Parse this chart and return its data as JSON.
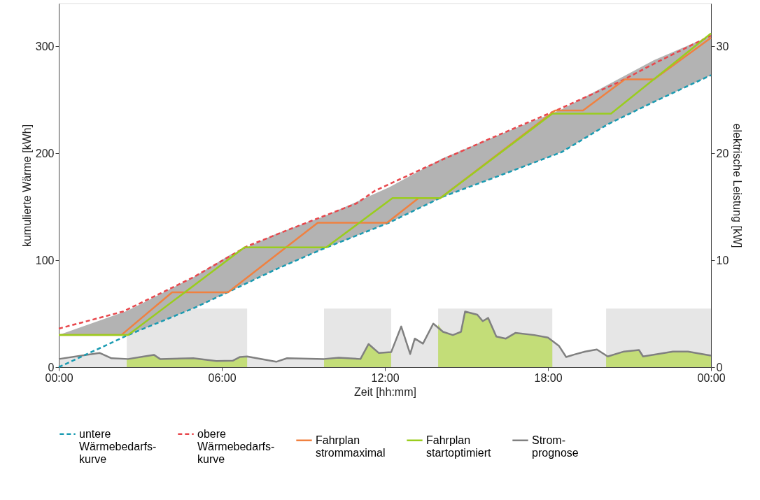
{
  "chart_data": {
    "type": "line",
    "xlabel": "Zeit [hh:mm]",
    "ylabel": "kumulierte Wärme [kWh]",
    "y2label": "elektrische Leistung [kW]",
    "xlim": [
      0,
      24
    ],
    "xticks": [
      {
        "value": 0,
        "label": "00:00"
      },
      {
        "value": 6,
        "label": "06:00"
      },
      {
        "value": 12,
        "label": "12:00"
      },
      {
        "value": 18,
        "label": "18:00"
      },
      {
        "value": 24,
        "label": "00:00"
      }
    ],
    "ylim": [
      0,
      340
    ],
    "yticks": [
      0,
      100,
      200,
      300
    ],
    "y2lim": [
      0,
      34
    ],
    "y2ticks": [
      0,
      10,
      20,
      30
    ],
    "grid": false,
    "legend": "bottom",
    "bands": [
      {
        "axis": "x",
        "from": 2.5,
        "to": 6.93,
        "color": "#e6e6e6"
      },
      {
        "axis": "x",
        "from": 9.76,
        "to": 12.23,
        "color": "#e6e6e6"
      },
      {
        "axis": "x",
        "from": 13.96,
        "to": 18.16,
        "color": "#e6e6e6"
      },
      {
        "axis": "x",
        "from": 20.14,
        "to": 24,
        "color": "#e6e6e6"
      }
    ],
    "series": [
      {
        "name": "untere Wärmebedarfs-kurve",
        "color": "#1a9bb2",
        "line_style": "dashed",
        "x": [
          0,
          2.55,
          4.95,
          6.3,
          7.95,
          9.76,
          12.15,
          14.1,
          15.9,
          18.5,
          20.2,
          21.9,
          24
        ],
        "values": [
          0,
          30,
          55,
          71,
          91,
          111,
          135,
          159,
          176,
          201,
          227,
          248,
          273
        ],
        "lower": [
          30,
          30,
          55,
          71,
          91,
          111,
          135,
          159,
          176,
          201,
          227,
          248,
          273
        ],
        "upper": [
          30,
          53,
          84,
          105,
          124,
          141,
          168,
          195,
          214,
          241,
          264,
          287,
          310
        ]
      },
      {
        "name": "obere Wärmebedarfs-kurve",
        "color": "#e8474c",
        "line_style": "dashed",
        "x": [
          0,
          2.37,
          4.95,
          6.93,
          8.4,
          10.95,
          11.64,
          14.2,
          15.9,
          18.3,
          20.65,
          22,
          24
        ],
        "values": [
          36,
          52,
          84,
          113,
          128,
          153,
          165,
          195,
          214,
          240,
          267,
          285,
          310
        ]
      },
      {
        "name": "Fahrplan strommaximal",
        "color": "#f08140",
        "line_style": "solid",
        "x": [
          0,
          2.3,
          4.17,
          6.23,
          9.53,
          12.08,
          13.24,
          14.04,
          18.26,
          19.29,
          20.83,
          21.9,
          24
        ],
        "values": [
          30,
          30,
          70,
          70,
          135,
          135,
          158,
          158,
          240,
          240,
          269,
          269,
          308
        ]
      },
      {
        "name": "Fahrplan startoptimiert",
        "color": "#9acd1e",
        "line_style": "solid",
        "x": [
          0,
          2.55,
          6.83,
          9.84,
          12.28,
          14.04,
          18.16,
          20.32,
          24
        ],
        "values": [
          30,
          30,
          112,
          112,
          158,
          158,
          237,
          237,
          312
        ]
      },
      {
        "type": "area",
        "axis": "y2",
        "name": "Strom-prognose",
        "color": "#808080",
        "line_style": "solid",
        "x": [
          0,
          1.5,
          1.94,
          2.55,
          3.5,
          3.73,
          4.95,
          5.8,
          6.4,
          6.67,
          6.93,
          8.0,
          8.4,
          9.76,
          10.3,
          11.1,
          11.4,
          11.77,
          12.23,
          12.6,
          12.93,
          13.1,
          13.4,
          13.78,
          14.14,
          14.5,
          14.8,
          14.95,
          15.4,
          15.6,
          15.8,
          16.1,
          16.45,
          16.8,
          17.5,
          18.0,
          18.4,
          18.67,
          19.0,
          19.37,
          19.8,
          20.2,
          20.8,
          21.35,
          21.5,
          22.6,
          23.15,
          24
        ],
        "values": [
          0.76,
          1.33,
          0.83,
          0.76,
          1.15,
          0.76,
          0.83,
          0.57,
          0.6,
          0.95,
          1.0,
          0.5,
          0.83,
          0.76,
          0.89,
          0.76,
          2.16,
          1.33,
          1.4,
          3.8,
          1.23,
          2.67,
          2.2,
          4.07,
          3.3,
          3.0,
          3.3,
          5.2,
          4.9,
          4.3,
          4.6,
          2.86,
          2.67,
          3.2,
          3.0,
          2.76,
          2.0,
          0.95,
          1.2,
          1.46,
          1.65,
          1.0,
          1.46,
          1.6,
          1.0,
          1.46,
          1.46,
          1.08
        ]
      },
      {
        "type": "area",
        "axis": "y2",
        "color": "#c3dd78",
        "x": [
          2.5,
          3.5,
          3.73,
          4.95,
          5.8,
          6.4,
          6.67,
          6.93,
          8.0,
          9.76,
          10.3,
          11.1,
          11.4,
          11.77,
          12.23,
          13.0,
          13.96,
          14.14,
          14.5,
          14.8,
          14.95,
          15.4,
          15.6,
          15.8,
          16.1,
          16.45,
          16.8,
          17.5,
          18.0,
          18.16,
          19.0,
          20.14,
          20.8,
          21.35,
          21.5,
          22.6,
          23.15,
          24
        ],
        "values": [
          0.76,
          1.15,
          0.76,
          0.83,
          0.57,
          0.6,
          0.95,
          1.0,
          null,
          0.76,
          0.89,
          0.76,
          2.16,
          1.33,
          1.4,
          null,
          4.0,
          3.3,
          3.0,
          3.3,
          5.2,
          4.9,
          4.3,
          4.6,
          2.86,
          2.67,
          3.2,
          3.0,
          2.76,
          2.5,
          null,
          1.0,
          1.46,
          1.6,
          1.0,
          1.46,
          1.46,
          1.08
        ]
      }
    ]
  }
}
